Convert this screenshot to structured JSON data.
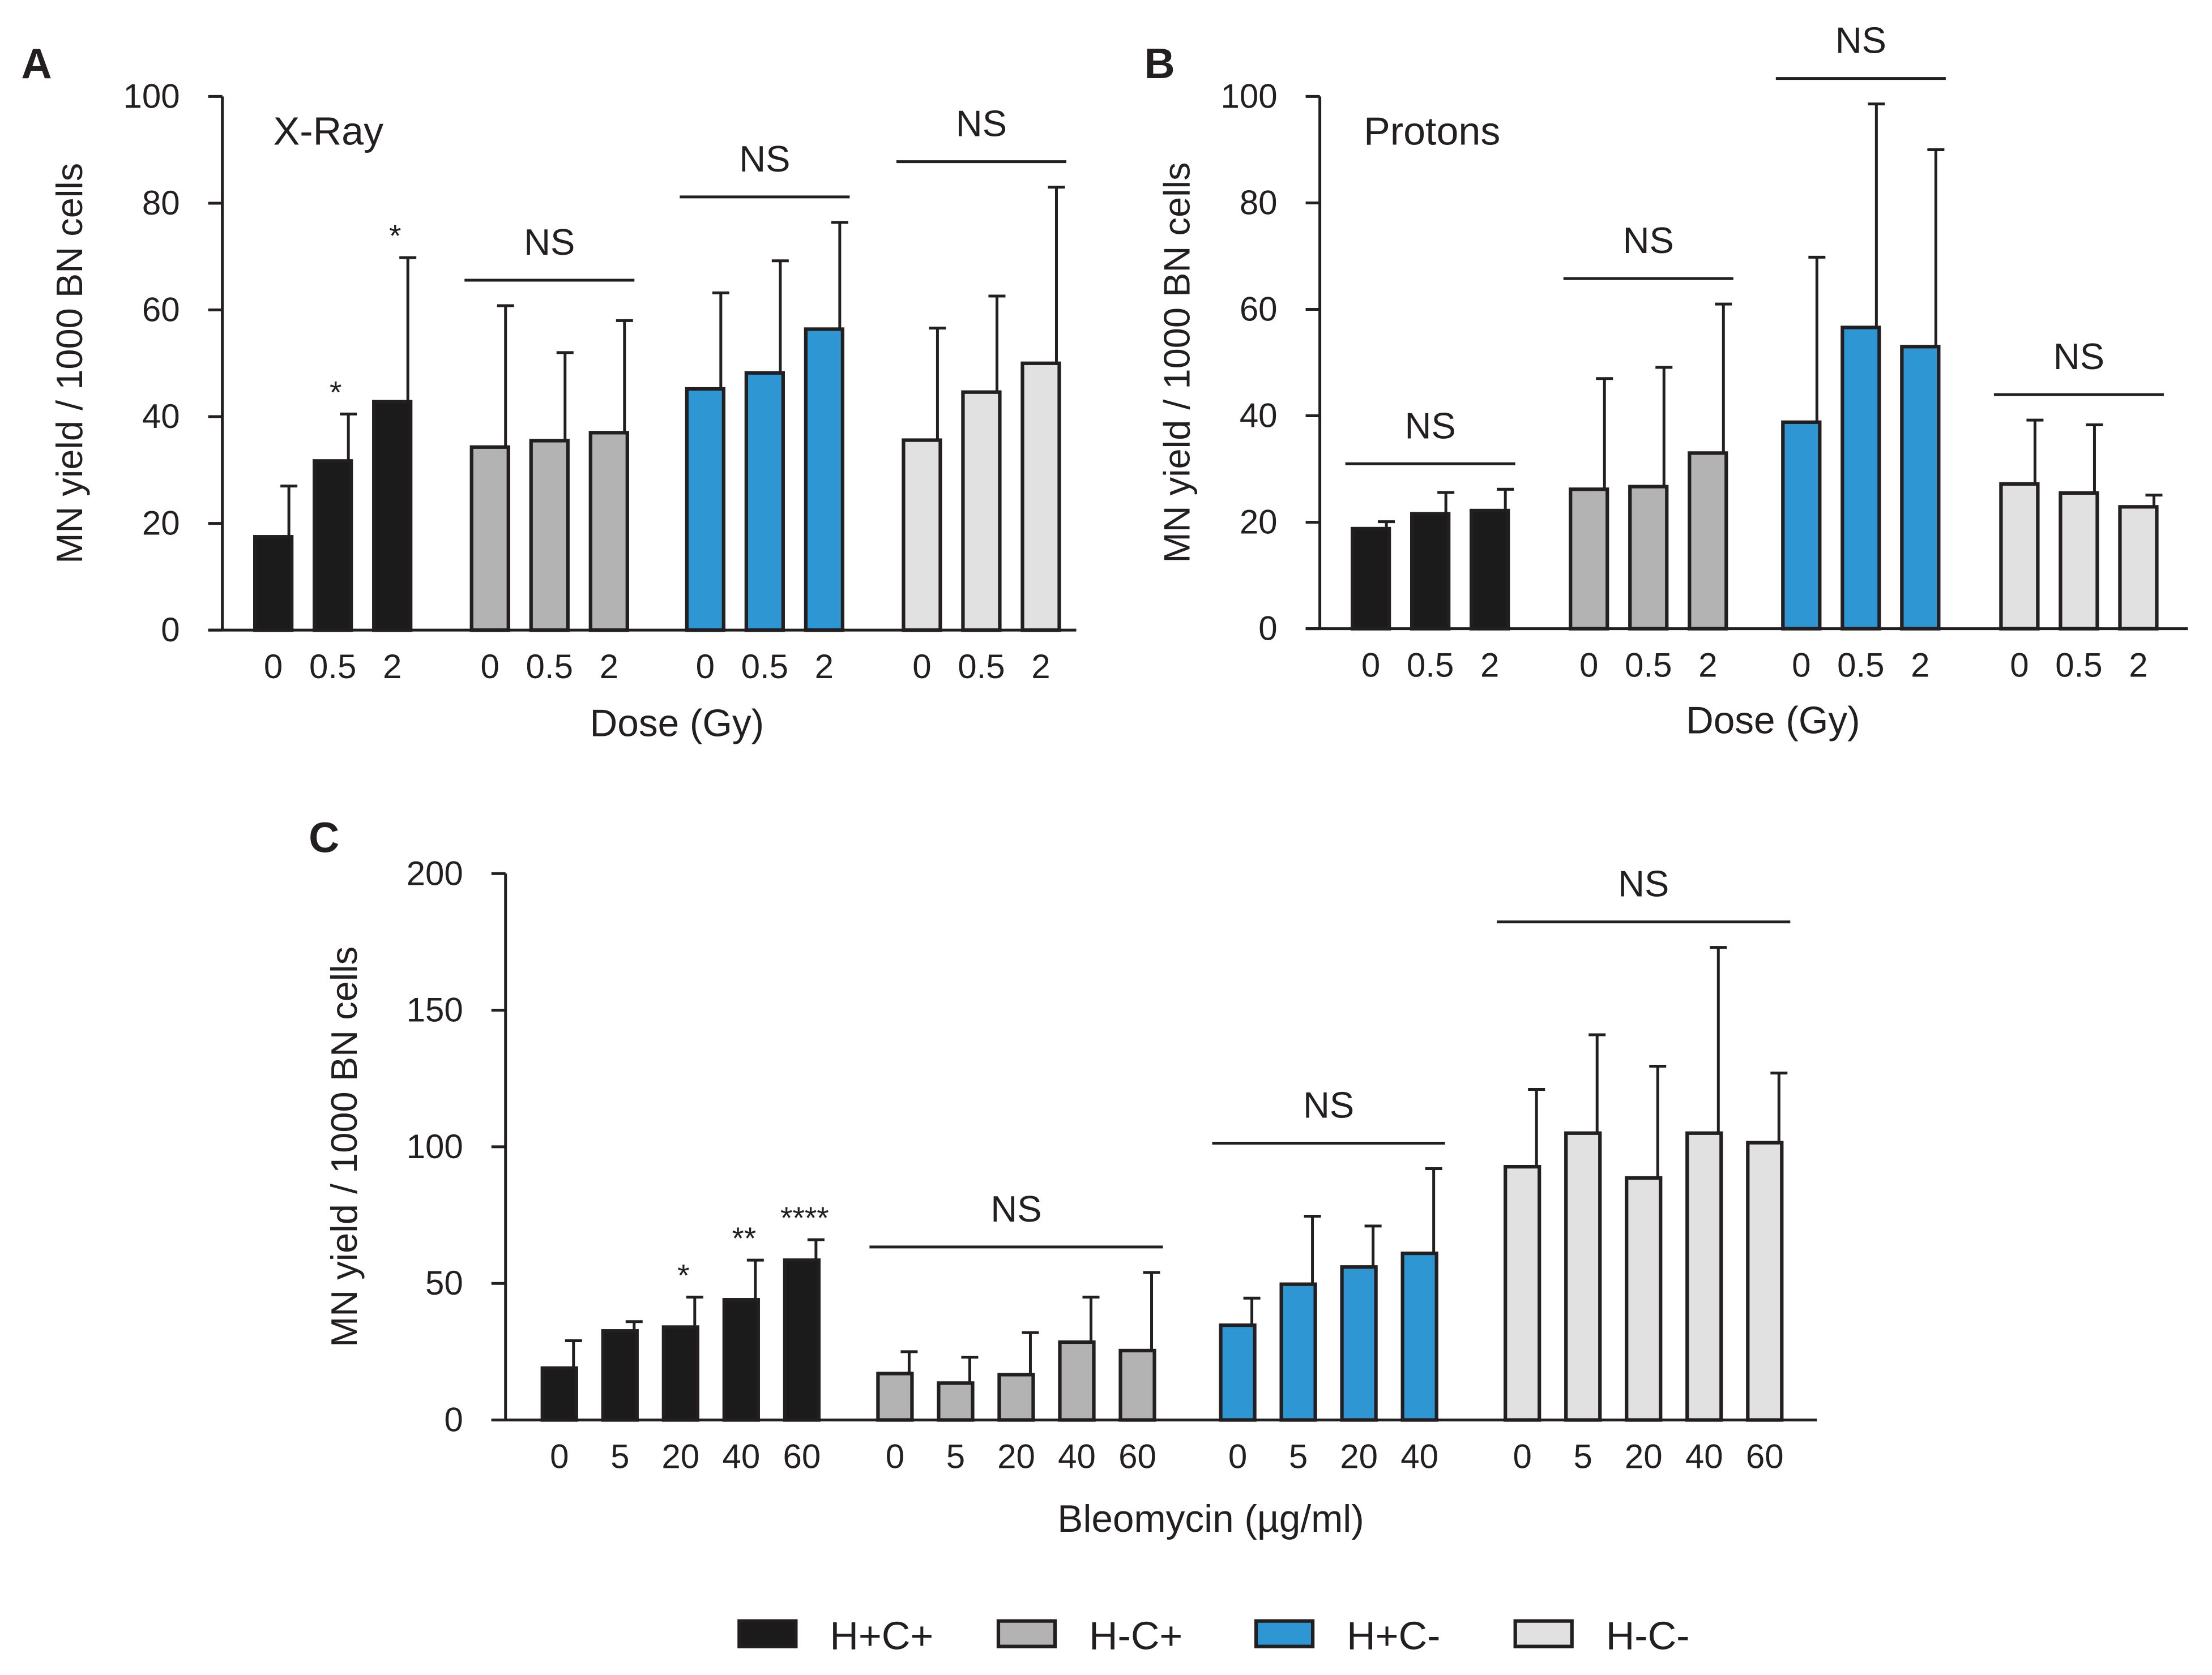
{
  "series": [
    {
      "name": "H+C+",
      "color": "#1b1b1b"
    },
    {
      "name": "H-C+",
      "color": "#b3b3b3"
    },
    {
      "name": "H+C-",
      "color": "#2e97d3"
    },
    {
      "name": "H-C-",
      "color": "#e1e1e1"
    }
  ],
  "chart_data": [
    {
      "type": "bar",
      "panel": "A",
      "title": "X-Ray",
      "xlabel": "Dose (Gy)",
      "ylabel": "MN yield / 1000 BN cells",
      "ylim": [
        0,
        100
      ],
      "yticks": [
        "0",
        "20",
        "40",
        "60",
        "80",
        "100"
      ],
      "groups": [
        {
          "series": 0,
          "annotation": null,
          "bars": [
            {
              "x": "0",
              "value": 17.5,
              "error": 9.5,
              "sig": null
            },
            {
              "x": "0.5",
              "value": 31.7,
              "error": 8.8,
              "sig": "*"
            },
            {
              "x": "2",
              "value": 42.8,
              "error": 27,
              "sig": "*"
            }
          ]
        },
        {
          "series": 1,
          "annotation": "NS",
          "bars": [
            {
              "x": "0",
              "value": 34.3,
              "error": 26.5,
              "sig": null
            },
            {
              "x": "0.5",
              "value": 35.5,
              "error": 16.5,
              "sig": null
            },
            {
              "x": "2",
              "value": 37,
              "error": 21,
              "sig": null
            }
          ]
        },
        {
          "series": 2,
          "annotation": "NS",
          "bars": [
            {
              "x": "0",
              "value": 45.2,
              "error": 18,
              "sig": null
            },
            {
              "x": "0.5",
              "value": 48.2,
              "error": 21,
              "sig": null
            },
            {
              "x": "2",
              "value": 56.4,
              "error": 20,
              "sig": null
            }
          ]
        },
        {
          "series": 3,
          "annotation": "NS",
          "bars": [
            {
              "x": "0",
              "value": 35.6,
              "error": 21,
              "sig": null
            },
            {
              "x": "0.5",
              "value": 44.6,
              "error": 18,
              "sig": null
            },
            {
              "x": "2",
              "value": 50,
              "error": 33,
              "sig": null
            }
          ]
        }
      ]
    },
    {
      "type": "bar",
      "panel": "B",
      "title": "Protons",
      "xlabel": "Dose (Gy)",
      "ylabel": "MN yield / 1000 BN cells",
      "ylim": [
        0,
        100
      ],
      "yticks": [
        "0",
        "20",
        "40",
        "60",
        "80",
        "100"
      ],
      "groups": [
        {
          "series": 0,
          "annotation": "NS",
          "bars": [
            {
              "x": "0",
              "value": 18.8,
              "error": 1.3,
              "sig": null
            },
            {
              "x": "0.5",
              "value": 21.6,
              "error": 4,
              "sig": null
            },
            {
              "x": "2",
              "value": 22.2,
              "error": 4,
              "sig": null
            }
          ]
        },
        {
          "series": 1,
          "annotation": "NS",
          "bars": [
            {
              "x": "0",
              "value": 26.2,
              "error": 20.8,
              "sig": null
            },
            {
              "x": "0.5",
              "value": 26.7,
              "error": 22.4,
              "sig": null
            },
            {
              "x": "2",
              "value": 33,
              "error": 28,
              "sig": null
            }
          ]
        },
        {
          "series": 2,
          "annotation": "NS",
          "bars": [
            {
              "x": "0",
              "value": 38.8,
              "error": 31,
              "sig": null
            },
            {
              "x": "0.5",
              "value": 56.6,
              "error": 42,
              "sig": null
            },
            {
              "x": "2",
              "value": 53,
              "error": 37,
              "sig": null
            }
          ]
        },
        {
          "series": 3,
          "annotation": "NS",
          "bars": [
            {
              "x": "0",
              "value": 27.2,
              "error": 12,
              "sig": null
            },
            {
              "x": "0.5",
              "value": 25.5,
              "error": 12.8,
              "sig": null
            },
            {
              "x": "2",
              "value": 22.9,
              "error": 2.2,
              "sig": null
            }
          ]
        }
      ]
    },
    {
      "type": "bar",
      "panel": "C",
      "title": "",
      "xlabel": "Bleomycin (µg/ml)",
      "ylabel": "MN yield / 1000 BN cells",
      "ylim": [
        0,
        200
      ],
      "yticks": [
        "0",
        "50",
        "100",
        "150",
        "200"
      ],
      "groups": [
        {
          "series": 0,
          "annotation": null,
          "bars": [
            {
              "x": "0",
              "value": 19,
              "error": 10,
              "sig": null
            },
            {
              "x": "5",
              "value": 32.6,
              "error": 3.4,
              "sig": null
            },
            {
              "x": "20",
              "value": 34,
              "error": 11,
              "sig": "*"
            },
            {
              "x": "40",
              "value": 44,
              "error": 14.5,
              "sig": "**"
            },
            {
              "x": "60",
              "value": 58.5,
              "error": 7.5,
              "sig": "****"
            }
          ]
        },
        {
          "series": 1,
          "annotation": "NS",
          "bars": [
            {
              "x": "0",
              "value": 17,
              "error": 8,
              "sig": null
            },
            {
              "x": "5",
              "value": 13.5,
              "error": 9.5,
              "sig": null
            },
            {
              "x": "20",
              "value": 16.6,
              "error": 15.4,
              "sig": null
            },
            {
              "x": "40",
              "value": 28.5,
              "error": 16.5,
              "sig": null
            },
            {
              "x": "60",
              "value": 25.4,
              "error": 28.6,
              "sig": null
            }
          ]
        },
        {
          "series": 2,
          "annotation": "NS",
          "bars": [
            {
              "x": "0",
              "value": 34.7,
              "error": 9.9,
              "sig": null
            },
            {
              "x": "5",
              "value": 49.7,
              "error": 24.9,
              "sig": null
            },
            {
              "x": "20",
              "value": 56,
              "error": 15,
              "sig": null
            },
            {
              "x": "40",
              "value": 61,
              "error": 31,
              "sig": null
            }
          ]
        },
        {
          "series": 3,
          "annotation": "NS",
          "bars": [
            {
              "x": "0",
              "value": 92.7,
              "error": 28.3,
              "sig": null
            },
            {
              "x": "5",
              "value": 105,
              "error": 36,
              "sig": null
            },
            {
              "x": "20",
              "value": 88.6,
              "error": 40.9,
              "sig": null
            },
            {
              "x": "40",
              "value": 105,
              "error": 68,
              "sig": null
            },
            {
              "x": "60",
              "value": 101.5,
              "error": 25.5,
              "sig": null
            }
          ]
        }
      ]
    }
  ]
}
